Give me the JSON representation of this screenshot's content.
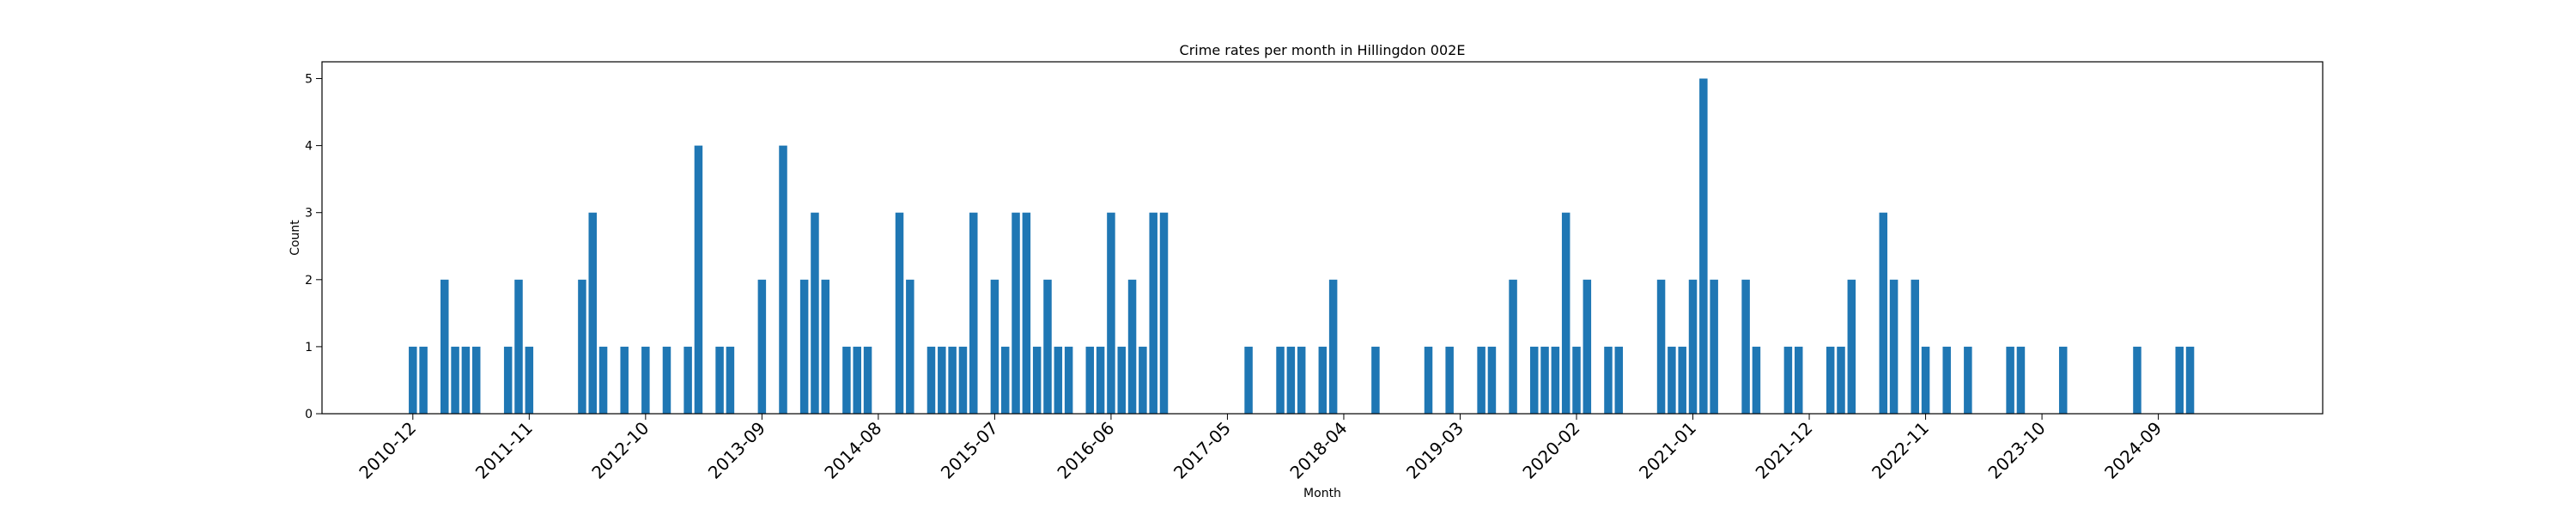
{
  "chart_data": {
    "type": "bar",
    "title": "Crime rates per month in Hillingdon 002E",
    "xlabel": "Month",
    "ylabel": "Count",
    "ylim": [
      0,
      5.25
    ],
    "yticks": [
      0,
      1,
      2,
      3,
      4,
      5
    ],
    "grid": false,
    "bar_color": "#1f77b4",
    "xtick_labels": [
      "2010-12",
      "2011-11",
      "2012-10",
      "2013-09",
      "2014-08",
      "2015-07",
      "2016-06",
      "2017-05",
      "2018-04",
      "2019-03",
      "2020-02",
      "2021-01",
      "2021-12",
      "2022-11",
      "2023-10",
      "2024-09"
    ],
    "categories": [
      "2010-12",
      "2011-01",
      "2011-03",
      "2011-04",
      "2011-05",
      "2011-06",
      "2011-09",
      "2011-10",
      "2011-11",
      "2012-04",
      "2012-05",
      "2012-06",
      "2012-08",
      "2012-10",
      "2012-12",
      "2013-02",
      "2013-03",
      "2013-05",
      "2013-06",
      "2013-09",
      "2013-11",
      "2014-01",
      "2014-02",
      "2014-03",
      "2014-05",
      "2014-06",
      "2014-07",
      "2014-10",
      "2014-11",
      "2015-01",
      "2015-02",
      "2015-03",
      "2015-04",
      "2015-05",
      "2015-07",
      "2015-08",
      "2015-09",
      "2015-10",
      "2015-11",
      "2015-12",
      "2016-01",
      "2016-02",
      "2016-04",
      "2016-05",
      "2016-06",
      "2016-07",
      "2016-08",
      "2016-09",
      "2016-10",
      "2016-11",
      "2017-07",
      "2017-10",
      "2017-11",
      "2017-12",
      "2018-02",
      "2018-03",
      "2018-07",
      "2018-12",
      "2019-02",
      "2019-05",
      "2019-06",
      "2019-08",
      "2019-10",
      "2019-11",
      "2019-12",
      "2020-01",
      "2020-02",
      "2020-03",
      "2020-05",
      "2020-06",
      "2020-10",
      "2020-11",
      "2020-12",
      "2021-01",
      "2021-02",
      "2021-03",
      "2021-06",
      "2021-07",
      "2021-10",
      "2021-11",
      "2022-02",
      "2022-03",
      "2022-04",
      "2022-07",
      "2022-08",
      "2022-10",
      "2022-11",
      "2023-01",
      "2023-03",
      "2023-07",
      "2023-08",
      "2023-12",
      "2024-07",
      "2024-11",
      "2024-12"
    ],
    "values": [
      1,
      1,
      2,
      1,
      1,
      1,
      1,
      2,
      1,
      2,
      3,
      1,
      1,
      1,
      1,
      1,
      4,
      1,
      1,
      2,
      4,
      2,
      3,
      2,
      1,
      1,
      1,
      3,
      2,
      1,
      1,
      1,
      1,
      3,
      2,
      1,
      3,
      3,
      1,
      2,
      1,
      1,
      1,
      1,
      3,
      1,
      2,
      1,
      3,
      3,
      1,
      1,
      1,
      1,
      1,
      2,
      1,
      1,
      1,
      1,
      1,
      2,
      1,
      1,
      1,
      3,
      1,
      2,
      1,
      1,
      2,
      1,
      1,
      2,
      5,
      2,
      2,
      1,
      1,
      1,
      1,
      1,
      2,
      3,
      2,
      2,
      1,
      1,
      1,
      1,
      1,
      1,
      1,
      1,
      1
    ]
  }
}
